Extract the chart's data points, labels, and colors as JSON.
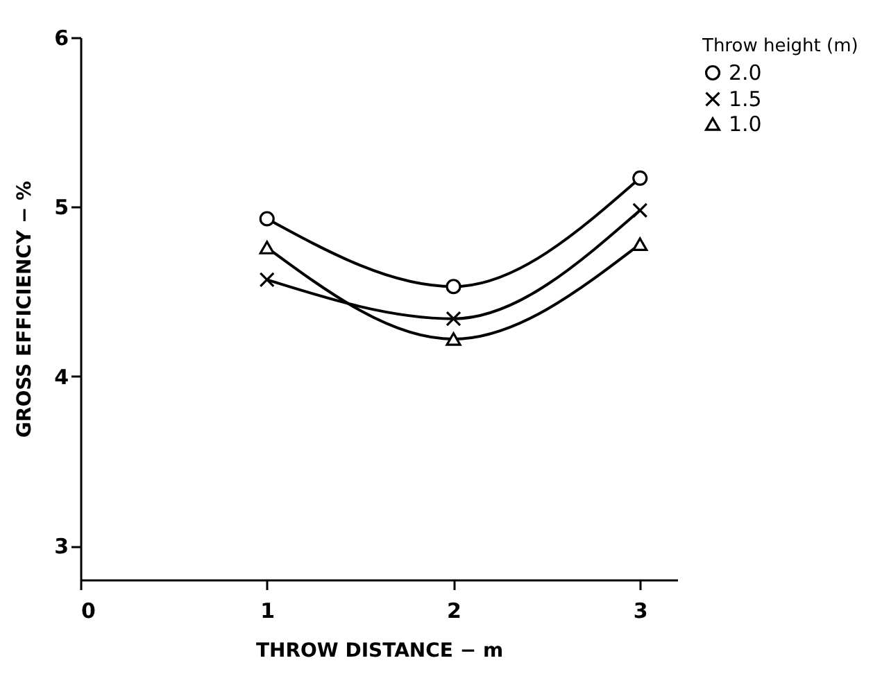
{
  "chart_data": {
    "type": "line",
    "xlabel": "THROW DISTANCE − m",
    "ylabel": "GROSS EFFICIENCY − %",
    "legend_title": "Throw height (m)",
    "legend": "right",
    "x": [
      1,
      2,
      3
    ],
    "series": [
      {
        "name": "2.0",
        "color": "#000000",
        "marker": "circle",
        "values": [
          4.93,
          4.53,
          5.17
        ]
      },
      {
        "name": "1.5",
        "color": "#000000",
        "marker": "cross",
        "values": [
          4.57,
          4.34,
          4.98
        ]
      },
      {
        "name": "1.0",
        "color": "#000000",
        "marker": "triangle",
        "values": [
          4.76,
          4.22,
          4.78
        ]
      }
    ],
    "xlim": [
      0,
      3.2
    ],
    "xticks": [
      0,
      1,
      2,
      3
    ],
    "ylim": [
      2.8,
      6
    ],
    "yticks": [
      3,
      4,
      5,
      6
    ],
    "grid": false
  }
}
